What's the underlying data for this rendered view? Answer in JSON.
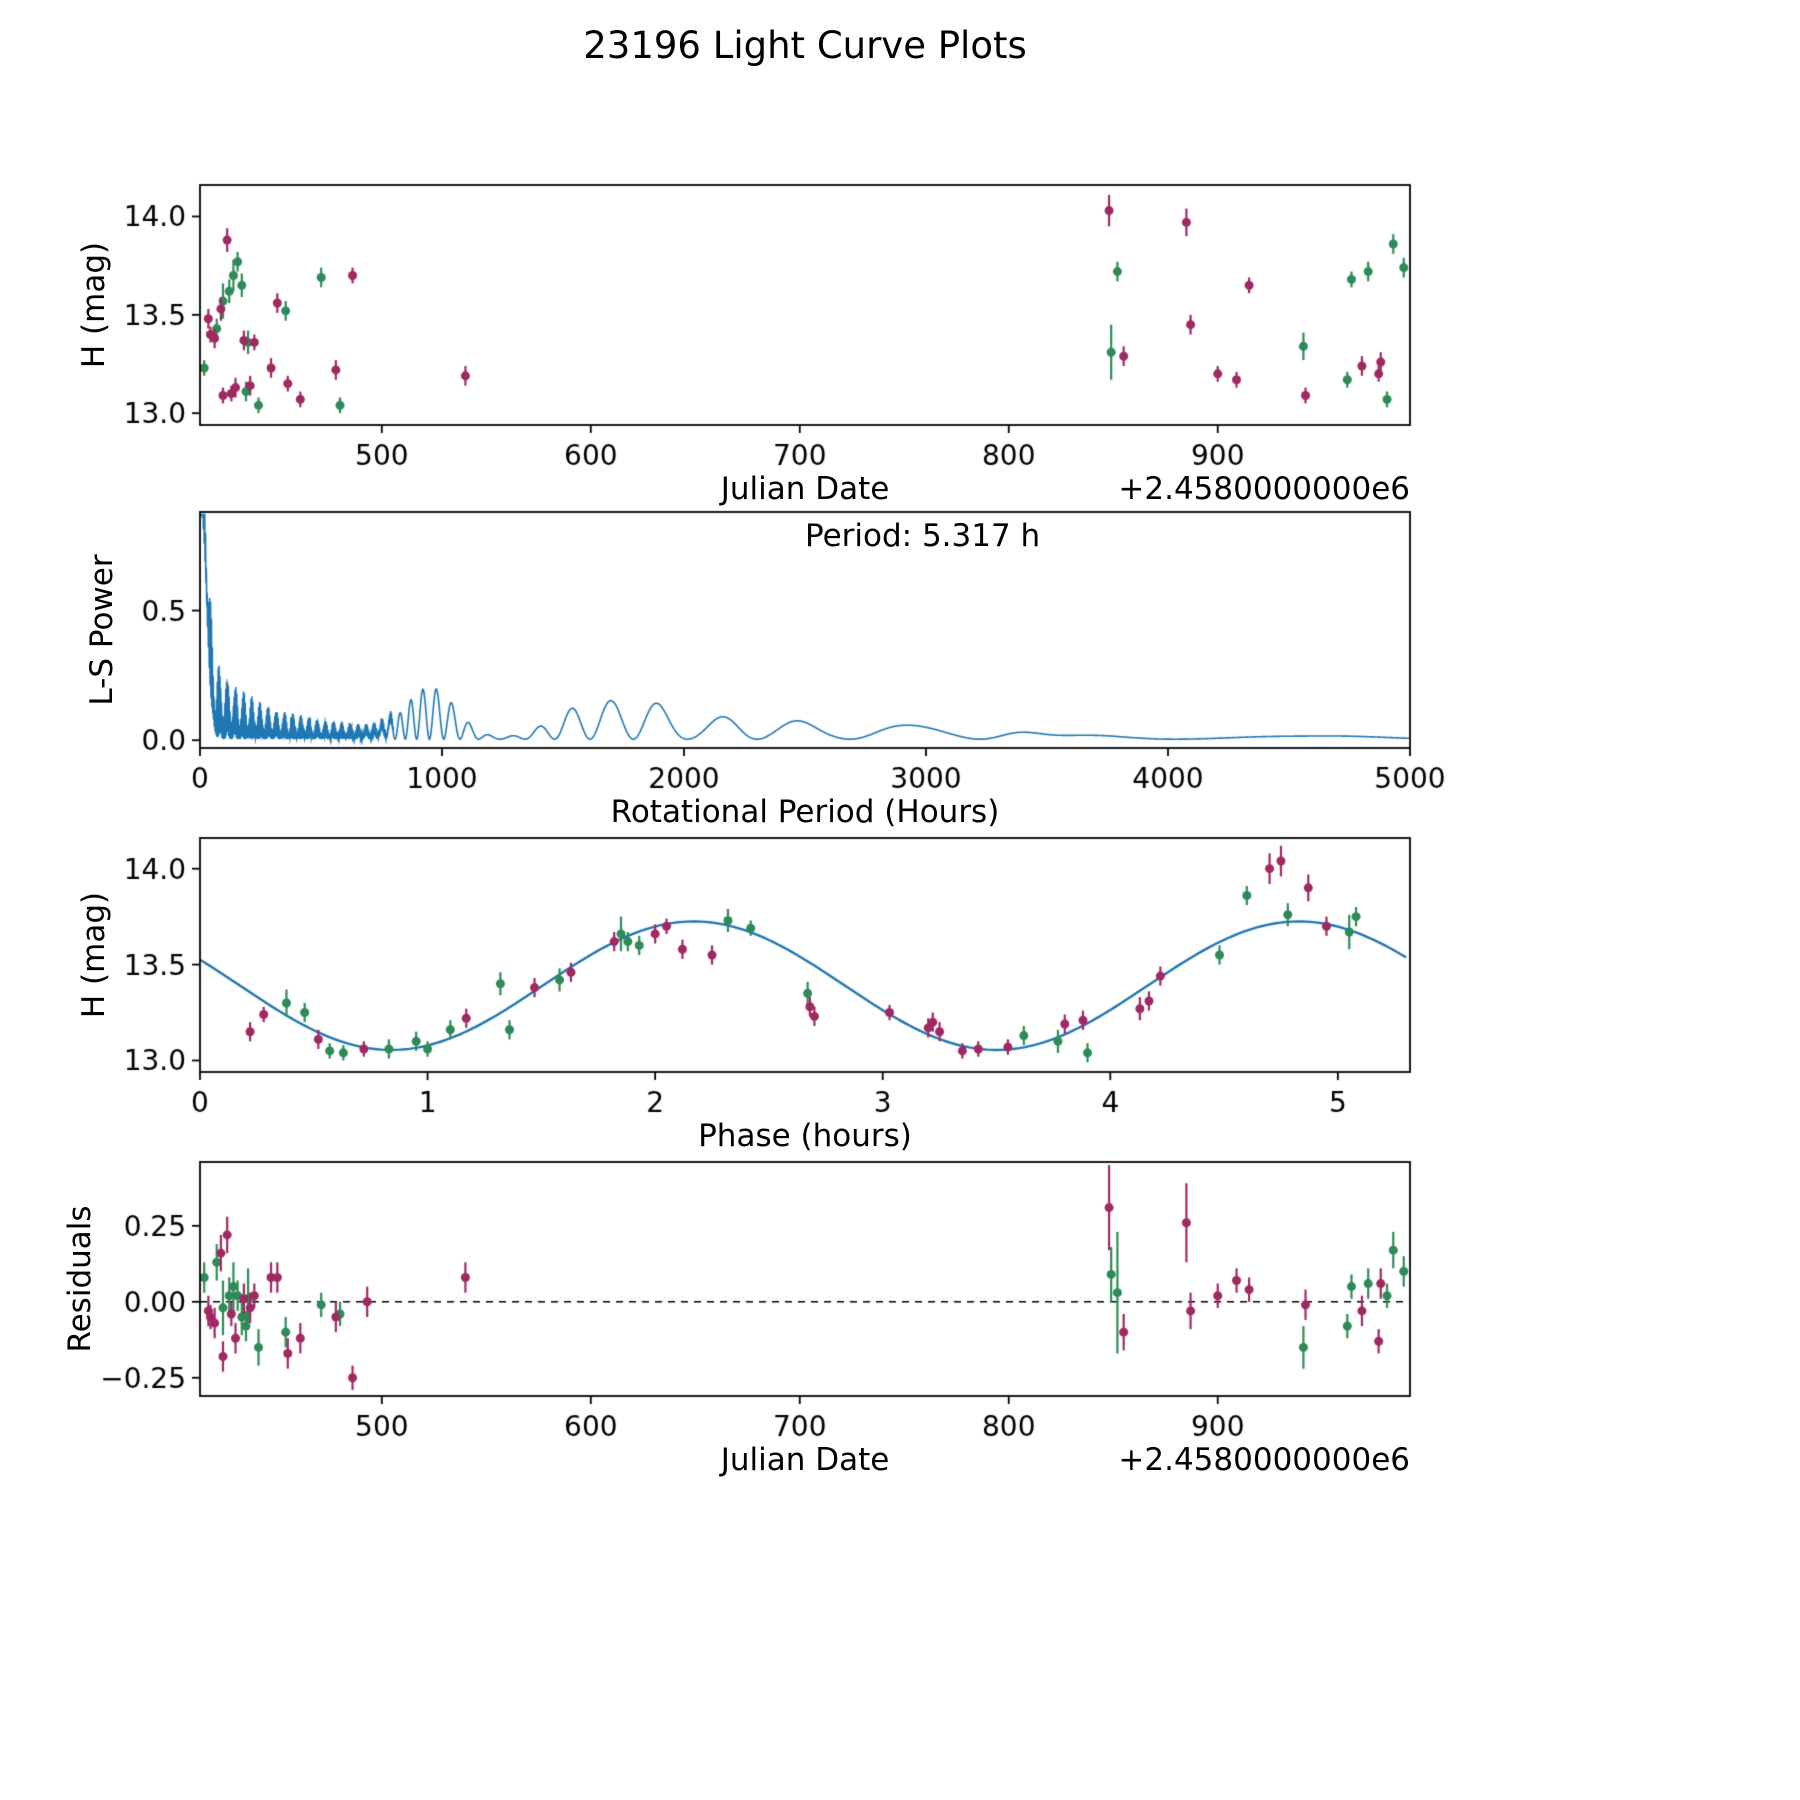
{
  "title": "23196 Light Curve Plots",
  "colors": {
    "green": "#2e8b57",
    "purple": "#a02963",
    "line_blue": "#1f77b4",
    "axis": "#000000"
  },
  "chart_data": [
    {
      "id": "jd_magnitude",
      "type": "scatter",
      "xlabel": "Julian Date",
      "ylabel": "H (mag)",
      "x_offset_text": "+2.4580000000e6",
      "xlim": [
        413,
        992
      ],
      "ylim": [
        12.94,
        14.16
      ],
      "xticks": [
        500,
        600,
        700,
        800,
        900
      ],
      "xtick_labels": [
        "500",
        "600",
        "700",
        "800",
        "900"
      ],
      "yticks": [
        13.0,
        13.5,
        14.0
      ],
      "ytick_labels": [
        "13.0",
        "13.5",
        "14.0"
      ],
      "series": [
        {
          "name": "dataset-green",
          "color_key": "green",
          "points": [
            [
              415,
              13.23,
              0.04
            ],
            [
              421,
              13.43,
              0.05
            ],
            [
              424,
              13.57,
              0.09
            ],
            [
              427,
              13.62,
              0.06
            ],
            [
              429,
              13.7,
              0.08
            ],
            [
              431,
              13.77,
              0.05
            ],
            [
              433,
              13.65,
              0.06
            ],
            [
              435,
              13.11,
              0.05
            ],
            [
              436,
              13.36,
              0.06
            ],
            [
              441,
              13.04,
              0.04
            ],
            [
              454,
              13.52,
              0.05
            ],
            [
              471,
              13.69,
              0.05
            ],
            [
              480,
              13.04,
              0.04
            ],
            [
              849,
              13.31,
              0.14
            ],
            [
              852,
              13.72,
              0.05
            ],
            [
              941,
              13.34,
              0.07
            ],
            [
              962,
              13.17,
              0.04
            ],
            [
              964,
              13.68,
              0.04
            ],
            [
              972,
              13.72,
              0.05
            ],
            [
              981,
              13.07,
              0.04
            ],
            [
              984,
              13.86,
              0.05
            ],
            [
              989,
              13.74,
              0.05
            ]
          ]
        },
        {
          "name": "dataset-purple",
          "color_key": "purple",
          "points": [
            [
              417,
              13.48,
              0.05
            ],
            [
              418,
              13.4,
              0.04
            ],
            [
              420,
              13.38,
              0.05
            ],
            [
              423,
              13.53,
              0.06
            ],
            [
              424,
              13.09,
              0.04
            ],
            [
              426,
              13.88,
              0.06
            ],
            [
              428,
              13.1,
              0.04
            ],
            [
              430,
              13.13,
              0.05
            ],
            [
              434,
              13.37,
              0.05
            ],
            [
              437,
              13.14,
              0.05
            ],
            [
              439,
              13.36,
              0.04
            ],
            [
              447,
              13.23,
              0.05
            ],
            [
              450,
              13.56,
              0.05
            ],
            [
              455,
              13.15,
              0.04
            ],
            [
              461,
              13.07,
              0.04
            ],
            [
              478,
              13.22,
              0.05
            ],
            [
              486,
              13.7,
              0.04
            ],
            [
              540,
              13.19,
              0.05
            ],
            [
              848,
              14.03,
              0.08
            ],
            [
              855,
              13.29,
              0.05
            ],
            [
              885,
              13.97,
              0.07
            ],
            [
              887,
              13.45,
              0.05
            ],
            [
              900,
              13.2,
              0.04
            ],
            [
              909,
              13.17,
              0.04
            ],
            [
              915,
              13.65,
              0.04
            ],
            [
              942,
              13.09,
              0.04
            ],
            [
              969,
              13.24,
              0.05
            ],
            [
              977,
              13.2,
              0.04
            ],
            [
              978,
              13.26,
              0.05
            ]
          ]
        }
      ]
    },
    {
      "id": "periodogram",
      "type": "line",
      "xlabel": "Rotational Period (Hours)",
      "ylabel": "L-S Power",
      "annotation": "Period: 5.317 h",
      "best_period_hours": 5.317,
      "xlim": [
        0,
        5000
      ],
      "ylim": [
        -0.03,
        0.88
      ],
      "xticks": [
        0,
        1000,
        2000,
        3000,
        4000,
        5000
      ],
      "xtick_labels": [
        "0",
        "1000",
        "2000",
        "3000",
        "4000",
        "5000"
      ],
      "yticks": [
        0.0,
        0.5
      ],
      "ytick_labels": [
        "0.0",
        "0.5"
      ],
      "synthesis": {
        "baseline": 0.004,
        "clip_max": 0.87,
        "main_spike": {
          "center": 6,
          "width": 30,
          "amp": 0.87
        },
        "low_decay": [
          {
            "amp": 0.3,
            "scale": 120
          },
          {
            "amp": 0.16,
            "scale": 650
          }
        ],
        "low_cutoff": 800,
        "comb_freq": 0.9,
        "beat_freq": 0.093,
        "lobe_constant": 50630,
        "bumps": [
          [
            950,
            0.2,
            150
          ],
          [
            1600,
            0.13,
            200
          ],
          [
            1850,
            0.13,
            150
          ],
          [
            2200,
            0.09,
            160
          ],
          [
            2450,
            0.06,
            150
          ],
          [
            2750,
            0.05,
            200
          ],
          [
            3100,
            0.05,
            250
          ],
          [
            3300,
            0.055,
            150
          ],
          [
            3800,
            0.02,
            300
          ],
          [
            4300,
            0.012,
            300
          ],
          [
            4800,
            0.012,
            300
          ]
        ]
      }
    },
    {
      "id": "phase_folded",
      "type": "scatter_line",
      "xlabel": "Phase (hours)",
      "ylabel": "H (mag)",
      "xlim": [
        0,
        5.317
      ],
      "ylim": [
        12.94,
        14.16
      ],
      "xticks": [
        0,
        1,
        2,
        3,
        4,
        5
      ],
      "xtick_labels": [
        "0",
        "1",
        "2",
        "3",
        "4",
        "5"
      ],
      "yticks": [
        13.0,
        13.5,
        14.0
      ],
      "ytick_labels": [
        "13.0",
        "13.5",
        "14.0"
      ],
      "fit": {
        "mean": 13.39,
        "amplitude": 0.335,
        "period_hours": 2.6585,
        "phase_of_max": 2.17
      },
      "series": [
        {
          "name": "dataset-green",
          "color_key": "green",
          "points": [
            [
              0.38,
              13.3,
              0.07
            ],
            [
              0.46,
              13.25,
              0.05
            ],
            [
              0.57,
              13.05,
              0.04
            ],
            [
              0.63,
              13.04,
              0.04
            ],
            [
              0.83,
              13.06,
              0.05
            ],
            [
              0.95,
              13.1,
              0.05
            ],
            [
              1.0,
              13.06,
              0.04
            ],
            [
              1.1,
              13.16,
              0.05
            ],
            [
              1.32,
              13.4,
              0.06
            ],
            [
              1.36,
              13.16,
              0.05
            ],
            [
              1.58,
              13.42,
              0.06
            ],
            [
              1.85,
              13.66,
              0.09
            ],
            [
              1.88,
              13.62,
              0.05
            ],
            [
              1.93,
              13.6,
              0.05
            ],
            [
              2.32,
              13.73,
              0.06
            ],
            [
              2.42,
              13.69,
              0.04
            ],
            [
              2.67,
              13.35,
              0.06
            ],
            [
              3.62,
              13.13,
              0.05
            ],
            [
              3.77,
              13.1,
              0.06
            ],
            [
              3.9,
              13.04,
              0.05
            ],
            [
              4.48,
              13.55,
              0.05
            ],
            [
              4.6,
              13.86,
              0.05
            ],
            [
              4.78,
              13.76,
              0.06
            ],
            [
              5.05,
              13.67,
              0.09
            ],
            [
              5.08,
              13.75,
              0.05
            ]
          ]
        },
        {
          "name": "dataset-purple",
          "color_key": "purple",
          "points": [
            [
              0.22,
              13.15,
              0.05
            ],
            [
              0.28,
              13.24,
              0.04
            ],
            [
              0.52,
              13.11,
              0.05
            ],
            [
              0.72,
              13.06,
              0.04
            ],
            [
              1.17,
              13.22,
              0.05
            ],
            [
              1.47,
              13.38,
              0.05
            ],
            [
              1.63,
              13.46,
              0.05
            ],
            [
              1.82,
              13.62,
              0.05
            ],
            [
              2.0,
              13.66,
              0.05
            ],
            [
              2.05,
              13.7,
              0.04
            ],
            [
              2.12,
              13.58,
              0.05
            ],
            [
              2.25,
              13.55,
              0.05
            ],
            [
              2.68,
              13.28,
              0.05
            ],
            [
              2.7,
              13.23,
              0.05
            ],
            [
              3.03,
              13.25,
              0.04
            ],
            [
              3.2,
              13.17,
              0.05
            ],
            [
              3.22,
              13.2,
              0.05
            ],
            [
              3.25,
              13.15,
              0.05
            ],
            [
              3.35,
              13.05,
              0.04
            ],
            [
              3.42,
              13.06,
              0.04
            ],
            [
              3.55,
              13.07,
              0.04
            ],
            [
              3.8,
              13.19,
              0.05
            ],
            [
              3.88,
              13.21,
              0.05
            ],
            [
              4.13,
              13.27,
              0.06
            ],
            [
              4.17,
              13.31,
              0.05
            ],
            [
              4.22,
              13.44,
              0.05
            ],
            [
              4.7,
              14.0,
              0.08
            ],
            [
              4.75,
              14.04,
              0.08
            ],
            [
              4.87,
              13.9,
              0.07
            ],
            [
              4.95,
              13.7,
              0.05
            ]
          ]
        }
      ]
    },
    {
      "id": "residuals",
      "type": "scatter",
      "xlabel": "Julian Date",
      "ylabel": "Residuals",
      "x_offset_text": "+2.4580000000e6",
      "xlim": [
        413,
        992
      ],
      "ylim": [
        -0.31,
        0.46
      ],
      "xticks": [
        500,
        600,
        700,
        800,
        900
      ],
      "xtick_labels": [
        "500",
        "600",
        "700",
        "800",
        "900"
      ],
      "yticks": [
        -0.25,
        0.0,
        0.25
      ],
      "ytick_labels": [
        "−0.25",
        "0.00",
        "0.25"
      ],
      "zero_line": true,
      "series": [
        {
          "name": "dataset-green",
          "color_key": "green",
          "points": [
            [
              415,
              0.08,
              0.05
            ],
            [
              421,
              0.13,
              0.06
            ],
            [
              424,
              -0.02,
              0.09
            ],
            [
              427,
              0.02,
              0.06
            ],
            [
              429,
              0.05,
              0.08
            ],
            [
              431,
              0.02,
              0.05
            ],
            [
              433,
              -0.05,
              0.06
            ],
            [
              435,
              -0.08,
              0.05
            ],
            [
              436,
              0.01,
              0.1
            ],
            [
              441,
              -0.15,
              0.06
            ],
            [
              454,
              -0.1,
              0.05
            ],
            [
              471,
              -0.01,
              0.04
            ],
            [
              480,
              -0.04,
              0.04
            ],
            [
              849,
              0.09,
              0.09
            ],
            [
              852,
              0.03,
              0.2
            ],
            [
              941,
              -0.15,
              0.07
            ],
            [
              962,
              -0.08,
              0.04
            ],
            [
              964,
              0.05,
              0.04
            ],
            [
              972,
              0.06,
              0.05
            ],
            [
              981,
              0.02,
              0.04
            ],
            [
              984,
              0.17,
              0.06
            ],
            [
              989,
              0.1,
              0.05
            ]
          ]
        },
        {
          "name": "dataset-purple",
          "color_key": "purple",
          "points": [
            [
              417,
              -0.03,
              0.05
            ],
            [
              418,
              -0.05,
              0.04
            ],
            [
              420,
              -0.07,
              0.05
            ],
            [
              423,
              0.16,
              0.06
            ],
            [
              424,
              -0.18,
              0.05
            ],
            [
              426,
              0.22,
              0.06
            ],
            [
              428,
              -0.04,
              0.04
            ],
            [
              430,
              -0.12,
              0.05
            ],
            [
              434,
              0.01,
              0.05
            ],
            [
              437,
              -0.02,
              0.05
            ],
            [
              439,
              0.02,
              0.04
            ],
            [
              447,
              0.08,
              0.05
            ],
            [
              450,
              0.08,
              0.05
            ],
            [
              455,
              -0.17,
              0.05
            ],
            [
              461,
              -0.12,
              0.05
            ],
            [
              478,
              -0.05,
              0.05
            ],
            [
              486,
              -0.25,
              0.04
            ],
            [
              493,
              0.0,
              0.05
            ],
            [
              540,
              0.08,
              0.05
            ],
            [
              848,
              0.31,
              0.14
            ],
            [
              855,
              -0.1,
              0.06
            ],
            [
              885,
              0.26,
              0.13
            ],
            [
              887,
              -0.03,
              0.06
            ],
            [
              900,
              0.02,
              0.04
            ],
            [
              909,
              0.07,
              0.04
            ],
            [
              915,
              0.04,
              0.04
            ],
            [
              942,
              -0.01,
              0.05
            ],
            [
              969,
              -0.03,
              0.05
            ],
            [
              977,
              -0.13,
              0.04
            ],
            [
              978,
              0.06,
              0.05
            ]
          ]
        }
      ]
    }
  ]
}
